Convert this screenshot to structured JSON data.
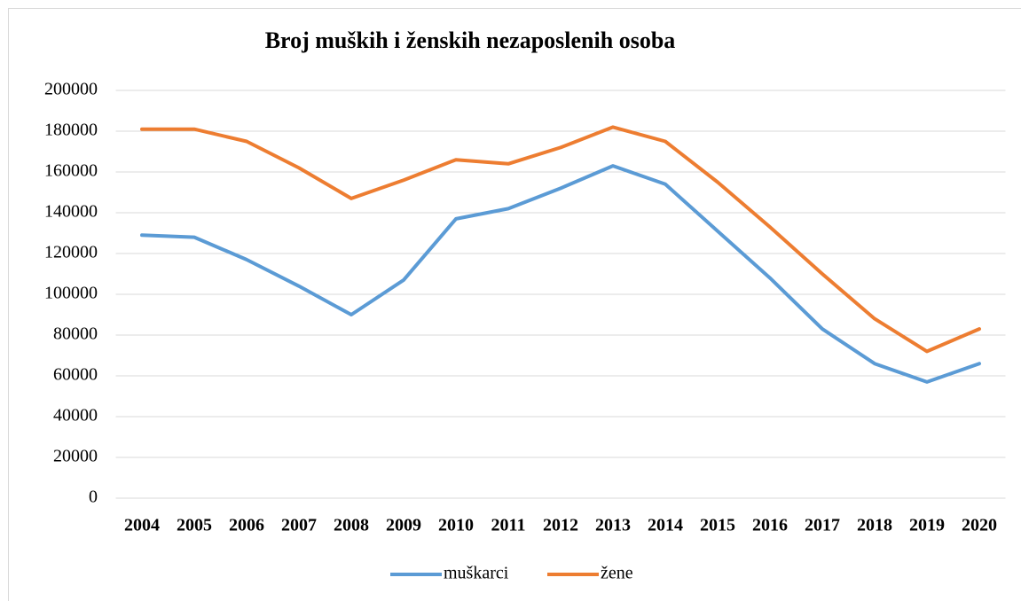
{
  "chart_data": {
    "type": "line",
    "title": "Broj muških i ženskih nezaposlenih osoba",
    "categories": [
      "2004",
      "2005",
      "2006",
      "2007",
      "2008",
      "2009",
      "2010",
      "2011",
      "2012",
      "2013",
      "2014",
      "2015",
      "2016",
      "2017",
      "2018",
      "2019",
      "2020"
    ],
    "series": [
      {
        "name": "muškarci",
        "color": "#5b9bd5",
        "values": [
          129000,
          128000,
          117000,
          104000,
          90000,
          107000,
          137000,
          142000,
          152000,
          163000,
          154000,
          131000,
          108000,
          83000,
          66000,
          57000,
          66000
        ]
      },
      {
        "name": "žene",
        "color": "#ed7d31",
        "values": [
          181000,
          181000,
          175000,
          162000,
          147000,
          156000,
          166000,
          164000,
          172000,
          182000,
          175000,
          155000,
          133000,
          110000,
          88000,
          72000,
          83000
        ]
      }
    ],
    "ylim": [
      0,
      200000
    ],
    "yticks": [
      0,
      20000,
      40000,
      60000,
      80000,
      100000,
      120000,
      140000,
      160000,
      180000,
      200000
    ],
    "grid": true,
    "legend": "bottom"
  }
}
